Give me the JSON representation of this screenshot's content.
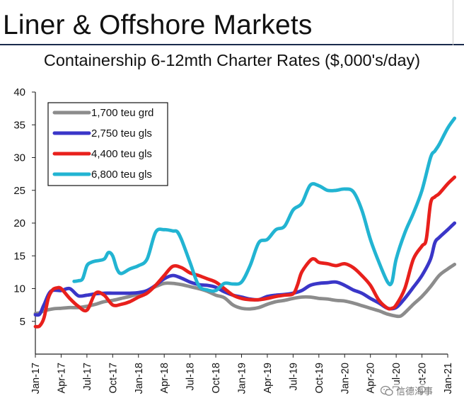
{
  "header": {
    "title": "Liner & Offshore Markets"
  },
  "watermark": {
    "text": "信德海事"
  },
  "colors": {
    "s1700": "#8c8c8c",
    "s2750": "#3a36c8",
    "s4400": "#e8201c",
    "s6800": "#22b4d2",
    "axis": "#222222",
    "text": "#111111"
  },
  "chart_data": {
    "type": "line",
    "title": "Containership 6-12mth Charter Rates ($,000's/day)",
    "xlabel": "",
    "ylabel": "",
    "ylim": [
      0,
      40
    ],
    "yticks": [
      5,
      10,
      15,
      20,
      25,
      30,
      35,
      40
    ],
    "xlim": [
      0,
      48
    ],
    "xticks": [
      {
        "x": 0,
        "label": "Jan-17"
      },
      {
        "x": 3,
        "label": "Apr-17"
      },
      {
        "x": 6,
        "label": "Jul-17"
      },
      {
        "x": 9,
        "label": "Oct-17"
      },
      {
        "x": 12,
        "label": "Jan-18"
      },
      {
        "x": 15,
        "label": "Apr-18"
      },
      {
        "x": 18,
        "label": "Jul-18"
      },
      {
        "x": 21,
        "label": "Oct-18"
      },
      {
        "x": 24,
        "label": "Jan-19"
      },
      {
        "x": 27,
        "label": "Apr-19"
      },
      {
        "x": 30,
        "label": "Jul-19"
      },
      {
        "x": 33,
        "label": "Oct-19"
      },
      {
        "x": 36,
        "label": "Jan-20"
      },
      {
        "x": 39,
        "label": "Apr-20"
      },
      {
        "x": 42,
        "label": "Jul-20"
      },
      {
        "x": 45,
        "label": "Oct-20"
      },
      {
        "x": 48,
        "label": "Jan-21"
      }
    ],
    "legend_position": "top-left",
    "series": [
      {
        "name": "1,700 teu grd",
        "color_key": "s1700",
        "points": [
          [
            0,
            6.2
          ],
          [
            0.5,
            6.3
          ],
          [
            1,
            6.6
          ],
          [
            2,
            6.9
          ],
          [
            3,
            7.0
          ],
          [
            4,
            7.1
          ],
          [
            5,
            7.1
          ],
          [
            6,
            7.3
          ],
          [
            7,
            7.6
          ],
          [
            8,
            8.0
          ],
          [
            9,
            8.2
          ],
          [
            10,
            8.5
          ],
          [
            11,
            8.8
          ],
          [
            12,
            9.2
          ],
          [
            13,
            9.7
          ],
          [
            14,
            10.3
          ],
          [
            15,
            10.8
          ],
          [
            16,
            10.8
          ],
          [
            17,
            10.6
          ],
          [
            18,
            10.3
          ],
          [
            19,
            10.0
          ],
          [
            20,
            9.6
          ],
          [
            21,
            9.0
          ],
          [
            22,
            8.6
          ],
          [
            23,
            7.5
          ],
          [
            24,
            7.0
          ],
          [
            25,
            6.9
          ],
          [
            26,
            7.1
          ],
          [
            27,
            7.6
          ],
          [
            28,
            8.0
          ],
          [
            29,
            8.2
          ],
          [
            30,
            8.5
          ],
          [
            31,
            8.7
          ],
          [
            32,
            8.7
          ],
          [
            33,
            8.5
          ],
          [
            34,
            8.4
          ],
          [
            35,
            8.2
          ],
          [
            36,
            8.1
          ],
          [
            37,
            7.8
          ],
          [
            38,
            7.4
          ],
          [
            39,
            7.0
          ],
          [
            40,
            6.6
          ],
          [
            41,
            6.1
          ],
          [
            42,
            5.8
          ],
          [
            42.5,
            5.8
          ],
          [
            43,
            6.3
          ],
          [
            44,
            7.6
          ],
          [
            45,
            8.8
          ],
          [
            46,
            10.3
          ],
          [
            47,
            12.0
          ],
          [
            48,
            13.0
          ],
          [
            48.8,
            13.7
          ]
        ]
      },
      {
        "name": "2,750 teu gls",
        "color_key": "s2750",
        "points": [
          [
            0,
            6.0
          ],
          [
            0.5,
            6.1
          ],
          [
            1,
            7.5
          ],
          [
            1.8,
            9.6
          ],
          [
            3,
            9.7
          ],
          [
            4,
            10.0
          ],
          [
            5,
            8.9
          ],
          [
            6,
            9.0
          ],
          [
            7,
            9.2
          ],
          [
            8,
            9.3
          ],
          [
            9,
            9.3
          ],
          [
            10,
            9.3
          ],
          [
            11,
            9.3
          ],
          [
            12,
            9.4
          ],
          [
            13,
            9.7
          ],
          [
            14,
            10.5
          ],
          [
            15,
            11.5
          ],
          [
            16,
            12.0
          ],
          [
            17,
            11.6
          ],
          [
            18,
            11.0
          ],
          [
            19,
            10.6
          ],
          [
            20,
            10.5
          ],
          [
            21,
            10.2
          ],
          [
            22,
            9.5
          ],
          [
            23,
            9.0
          ],
          [
            24,
            8.7
          ],
          [
            25,
            8.4
          ],
          [
            26,
            8.3
          ],
          [
            27,
            8.8
          ],
          [
            28,
            9.0
          ],
          [
            29,
            9.1
          ],
          [
            30,
            9.3
          ],
          [
            31,
            9.7
          ],
          [
            32,
            10.5
          ],
          [
            33,
            10.8
          ],
          [
            34,
            10.9
          ],
          [
            35,
            11.0
          ],
          [
            36,
            10.5
          ],
          [
            37,
            9.8
          ],
          [
            38,
            9.3
          ],
          [
            39,
            8.5
          ],
          [
            40,
            7.8
          ],
          [
            41,
            7.0
          ],
          [
            42,
            7.1
          ],
          [
            43,
            8.5
          ],
          [
            44,
            10.2
          ],
          [
            45,
            12.0
          ],
          [
            46,
            14.5
          ],
          [
            46.5,
            17.0
          ],
          [
            47,
            17.8
          ],
          [
            48,
            19.0
          ],
          [
            48.8,
            20.0
          ]
        ]
      },
      {
        "name": "4,400 teu gls",
        "color_key": "s4400",
        "points": [
          [
            0,
            4.2
          ],
          [
            0.5,
            4.3
          ],
          [
            1,
            5.5
          ],
          [
            1.5,
            8.5
          ],
          [
            2,
            9.8
          ],
          [
            2.5,
            10.1
          ],
          [
            3,
            10.0
          ],
          [
            4,
            8.5
          ],
          [
            5,
            7.3
          ],
          [
            6,
            6.7
          ],
          [
            7,
            9.3
          ],
          [
            8,
            9.0
          ],
          [
            9,
            7.5
          ],
          [
            10,
            7.6
          ],
          [
            11,
            8.0
          ],
          [
            12,
            8.7
          ],
          [
            13,
            9.3
          ],
          [
            14,
            10.5
          ],
          [
            15,
            12.0
          ],
          [
            16,
            13.4
          ],
          [
            17,
            13.2
          ],
          [
            18,
            12.4
          ],
          [
            19,
            12.0
          ],
          [
            20,
            11.5
          ],
          [
            21,
            11.0
          ],
          [
            22,
            10.0
          ],
          [
            23,
            9.0
          ],
          [
            24,
            8.5
          ],
          [
            25,
            8.3
          ],
          [
            26,
            8.3
          ],
          [
            27,
            8.5
          ],
          [
            28,
            8.8
          ],
          [
            29,
            9.0
          ],
          [
            30,
            9.2
          ],
          [
            30.5,
            10.5
          ],
          [
            31,
            12.5
          ],
          [
            32,
            14.3
          ],
          [
            32.5,
            14.5
          ],
          [
            33,
            14.0
          ],
          [
            34,
            13.8
          ],
          [
            35,
            13.5
          ],
          [
            36,
            13.8
          ],
          [
            37,
            13.2
          ],
          [
            38,
            12.0
          ],
          [
            39,
            10.5
          ],
          [
            40,
            8.2
          ],
          [
            41,
            7.0
          ],
          [
            41.5,
            7.0
          ],
          [
            42,
            7.5
          ],
          [
            43,
            10.0
          ],
          [
            44,
            14.5
          ],
          [
            45,
            16.5
          ],
          [
            45.5,
            17.5
          ],
          [
            46,
            23.0
          ],
          [
            46.5,
            24.0
          ],
          [
            47,
            24.5
          ],
          [
            48,
            26.0
          ],
          [
            48.8,
            27.0
          ]
        ]
      },
      {
        "name": "6,800 teu gls",
        "color_key": "s6800",
        "points": [
          [
            4.5,
            11.1
          ],
          [
            5,
            11.2
          ],
          [
            5.5,
            11.5
          ],
          [
            6,
            13.5
          ],
          [
            6.5,
            14.0
          ],
          [
            7,
            14.2
          ],
          [
            8,
            14.5
          ],
          [
            8.5,
            15.5
          ],
          [
            9,
            15.0
          ],
          [
            9.5,
            13.0
          ],
          [
            10,
            12.3
          ],
          [
            11,
            13.0
          ],
          [
            12,
            13.5
          ],
          [
            13,
            14.5
          ],
          [
            14,
            18.6
          ],
          [
            15,
            19.0
          ],
          [
            16,
            18.8
          ],
          [
            16.5,
            18.7
          ],
          [
            17,
            17.5
          ],
          [
            18,
            14.0
          ],
          [
            19,
            10.5
          ],
          [
            20,
            9.8
          ],
          [
            21,
            9.7
          ],
          [
            22,
            10.8
          ],
          [
            23,
            10.7
          ],
          [
            24,
            11.0
          ],
          [
            25,
            13.5
          ],
          [
            26,
            17.0
          ],
          [
            27,
            17.5
          ],
          [
            28,
            19.0
          ],
          [
            29,
            19.5
          ],
          [
            30,
            22.0
          ],
          [
            31,
            23.0
          ],
          [
            32,
            25.8
          ],
          [
            33,
            25.7
          ],
          [
            34,
            25.0
          ],
          [
            35,
            25.0
          ],
          [
            36,
            25.2
          ],
          [
            37,
            24.8
          ],
          [
            38,
            22.0
          ],
          [
            39,
            17.5
          ],
          [
            40,
            14.0
          ],
          [
            41,
            11.0
          ],
          [
            41.5,
            11.0
          ],
          [
            42,
            14.5
          ],
          [
            43,
            18.5
          ],
          [
            44,
            21.5
          ],
          [
            45,
            25.0
          ],
          [
            46,
            30.0
          ],
          [
            46.5,
            31.0
          ],
          [
            47,
            32.0
          ],
          [
            48,
            34.5
          ],
          [
            48.8,
            36.0
          ]
        ]
      }
    ]
  }
}
